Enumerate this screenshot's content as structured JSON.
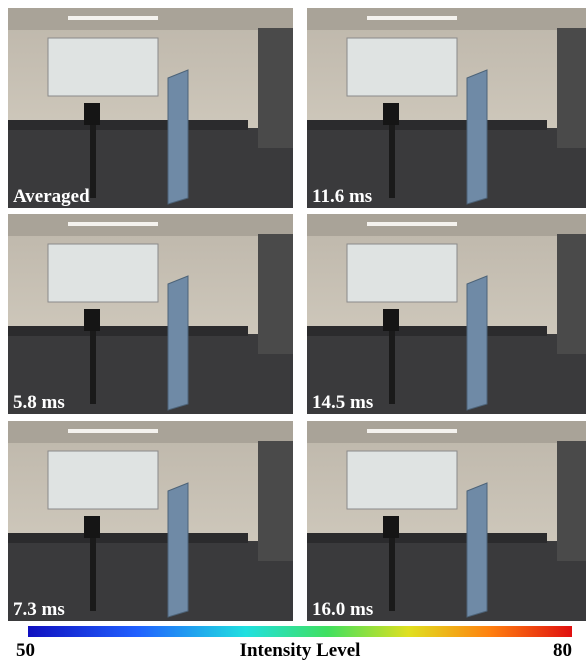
{
  "panels": [
    {
      "label": "Averaged"
    },
    {
      "label": "11.6 ms"
    },
    {
      "label": "5.8 ms"
    },
    {
      "label": "14.5 ms"
    },
    {
      "label": "7.3 ms"
    },
    {
      "label": "16.0 ms"
    }
  ],
  "colorbar": {
    "min": 50,
    "max": 80,
    "label": "Intensity Level"
  }
}
